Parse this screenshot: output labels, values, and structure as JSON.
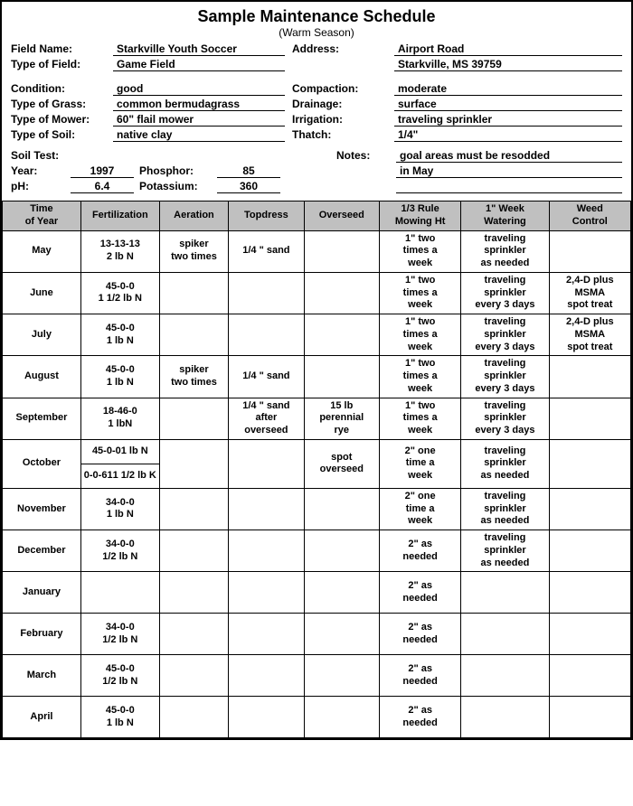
{
  "title": "Sample Maintenance Schedule",
  "subtitle": "(Warm Season)",
  "info": {
    "fieldName_lab": "Field Name:",
    "fieldName": "Starkville Youth Soccer",
    "address_lab": "Address:",
    "address1": "Airport Road",
    "typeField_lab": "Type of Field:",
    "typeField": "Game Field",
    "address2": "Starkville, MS    39759",
    "condition_lab": "Condition:",
    "condition": "good",
    "compaction_lab": "Compaction:",
    "compaction": "moderate",
    "grass_lab": "Type of Grass:",
    "grass": "common bermudagrass",
    "drainage_lab": "Drainage:",
    "drainage": "surface",
    "mower_lab": "Type of Mower:",
    "mower": "60\" flail mower",
    "irrigation_lab": "Irrigation:",
    "irrigation": "traveling sprinkler",
    "soil_lab": "Type of Soil:",
    "soil": "native clay",
    "thatch_lab": "Thatch:",
    "thatch": "1/4\""
  },
  "soil": {
    "soilTest_lab": "Soil Test:",
    "notes_lab": "Notes:",
    "notes1": "goal areas must be resodded",
    "year_lab": "Year:",
    "year": "1997",
    "phosphor_lab": "Phosphor:",
    "phosphor": "85",
    "notes2": "in May",
    "ph_lab": "pH:",
    "ph": "6.4",
    "potassium_lab": "Potassium:",
    "potassium": "360"
  },
  "table": {
    "headers": [
      "Time\nof Year",
      "Fertilization",
      "Aeration",
      "Topdress",
      "Overseed",
      "1/3 Rule\nMowing Ht",
      "1\" Week\nWatering",
      "Weed\nControl"
    ],
    "col_widths": [
      "12.5%",
      "12.5%",
      "11%",
      "12%",
      "12%",
      "13%",
      "14%",
      "13%"
    ],
    "header_bg": "#c0c0c0",
    "rows": [
      {
        "time": "May",
        "fert": "13-13-13\n2 lb N",
        "aer": "spiker\ntwo times",
        "top": "1/4 \" sand",
        "over": "",
        "mow": "1\" two\ntimes a\nweek",
        "water": "traveling\nsprinkler\nas needed",
        "weed": ""
      },
      {
        "time": "June",
        "fert": "45-0-0\n1 1/2 lb N",
        "aer": "",
        "top": "",
        "over": "",
        "mow": "1\" two\ntimes a\nweek",
        "water": "traveling\nsprinkler\nevery 3 days",
        "weed": "2,4-D plus\nMSMA\nspot treat"
      },
      {
        "time": "July",
        "fert": "45-0-0\n1 lb N",
        "aer": "",
        "top": "",
        "over": "",
        "mow": "1\" two\ntimes a\nweek",
        "water": "traveling\nsprinkler\nevery 3 days",
        "weed": "2,4-D plus\nMSMA\nspot treat"
      },
      {
        "time": "August",
        "fert": "45-0-0\n1 lb N",
        "aer": "spiker\ntwo times",
        "top": "1/4 \" sand",
        "over": "",
        "mow": "1\" two\ntimes a\nweek",
        "water": "traveling\nsprinkler\nevery 3 days",
        "weed": ""
      },
      {
        "time": "September",
        "fert": "18-46-0\n1 lbN",
        "aer": "",
        "top": "1/4 \" sand\nafter\noverseed",
        "over": "15 lb\nperennial\nrye",
        "mow": "1\" two\ntimes a\nweek",
        "water": "traveling\nsprinkler\nevery 3 days",
        "weed": ""
      },
      {
        "time": "October",
        "fert_split": [
          "45-0-0\n1 lb N",
          "0-0-61\n1 1/2 lb K"
        ],
        "aer": "",
        "top": "",
        "over": "spot\noverseed",
        "mow": "2\" one\ntime a\nweek",
        "water": "traveling\nsprinkler\nas needed",
        "weed": ""
      },
      {
        "time": "November",
        "fert": "34-0-0\n1 lb N",
        "aer": "",
        "top": "",
        "over": "",
        "mow": "2\" one\ntime a\nweek",
        "water": "traveling\nsprinkler\nas needed",
        "weed": ""
      },
      {
        "time": "December",
        "fert": "34-0-0\n1/2 lb N",
        "aer": "",
        "top": "",
        "over": "",
        "mow": "2\" as\nneeded",
        "water": "traveling\nsprinkler\nas needed",
        "weed": ""
      },
      {
        "time": "January",
        "fert": "",
        "aer": "",
        "top": "",
        "over": "",
        "mow": "2\" as\nneeded",
        "water": "",
        "weed": ""
      },
      {
        "time": "February",
        "fert": "34-0-0\n1/2 lb N",
        "aer": "",
        "top": "",
        "over": "",
        "mow": "2\" as\nneeded",
        "water": "",
        "weed": ""
      },
      {
        "time": "March",
        "fert": "45-0-0\n1/2 lb N",
        "aer": "",
        "top": "",
        "over": "",
        "mow": "2\" as\nneeded",
        "water": "",
        "weed": ""
      },
      {
        "time": "April",
        "fert": "45-0-0\n1 lb N",
        "aer": "",
        "top": "",
        "over": "",
        "mow": "2\" as\nneeded",
        "water": "",
        "weed": ""
      }
    ]
  }
}
